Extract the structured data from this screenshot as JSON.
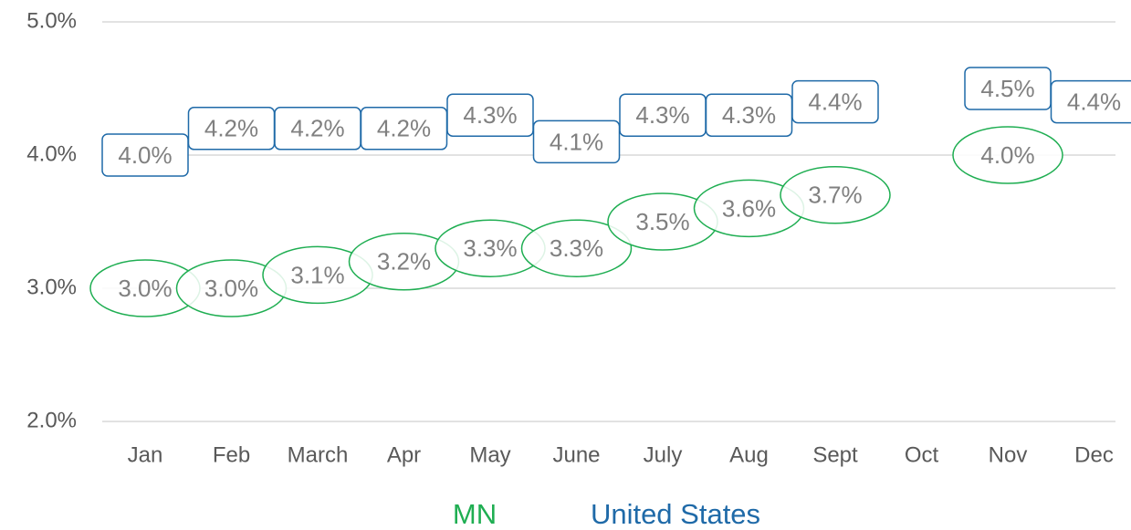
{
  "chart_data": {
    "type": "label-points",
    "categories": [
      "Jan",
      "Feb",
      "March",
      "Apr",
      "May",
      "June",
      "July",
      "Aug",
      "Sept",
      "Oct",
      "Nov",
      "Dec"
    ],
    "series": [
      {
        "name": "MN",
        "color": "#1fae52",
        "shape": "ellipse",
        "values": [
          3.0,
          3.0,
          3.1,
          3.2,
          3.3,
          3.3,
          3.5,
          3.6,
          3.7,
          null,
          4.0,
          null
        ],
        "value_labels": [
          "3.0%",
          "3.0%",
          "3.1%",
          "3.2%",
          "3.3%",
          "3.3%",
          "3.5%",
          "3.6%",
          "3.7%",
          null,
          "4.0%",
          null
        ]
      },
      {
        "name": "United States",
        "color": "#1f6aa8",
        "shape": "rounded-rect",
        "values": [
          4.0,
          4.2,
          4.2,
          4.2,
          4.3,
          4.1,
          4.3,
          4.3,
          4.4,
          null,
          4.5,
          4.4
        ],
        "value_labels": [
          "4.0%",
          "4.2%",
          "4.2%",
          "4.2%",
          "4.3%",
          "4.1%",
          "4.3%",
          "4.3%",
          "4.4%",
          null,
          "4.5%",
          "4.4%"
        ]
      }
    ],
    "ylim": [
      2.0,
      5.0
    ],
    "yticks": [
      {
        "value": 2.0,
        "label": "2.0%"
      },
      {
        "value": 3.0,
        "label": "3.0%"
      },
      {
        "value": 4.0,
        "label": "4.0%"
      },
      {
        "value": 5.0,
        "label": "5.0%"
      }
    ],
    "grid": true,
    "legend": "bottom"
  }
}
